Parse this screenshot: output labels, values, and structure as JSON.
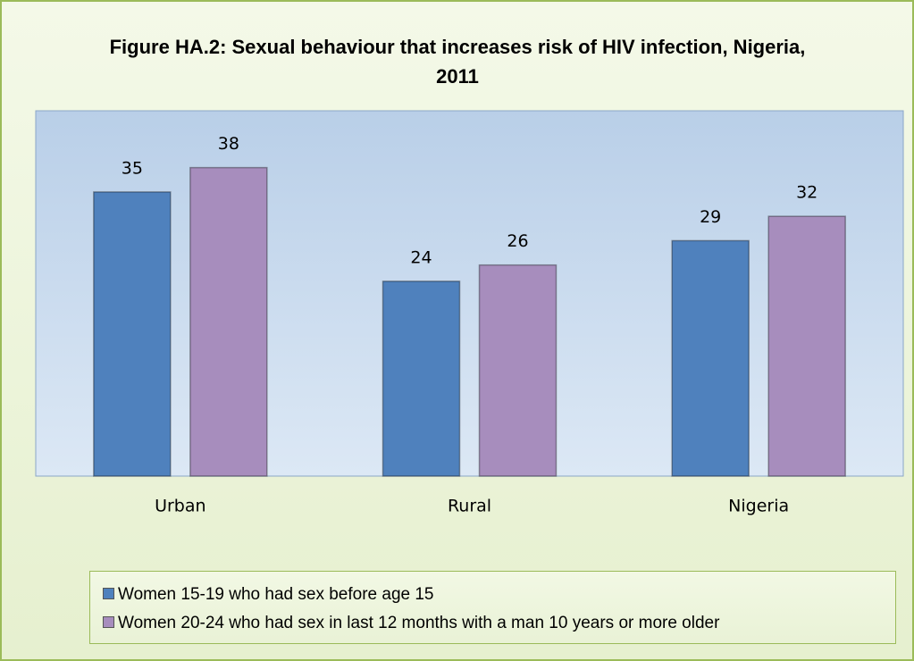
{
  "chart_data": {
    "type": "bar",
    "title": "Figure HA.2: Sexual behaviour that increases risk of HIV infection, Nigeria, 2011",
    "categories": [
      "Urban",
      "Rural",
      "Nigeria"
    ],
    "series": [
      {
        "name": "Women 15-19 who had sex before age 15",
        "color": "#4f81bd",
        "values": [
          35,
          24,
          29
        ]
      },
      {
        "name": "Women 20-24 who had sex in last 12 months with a man 10 years or more older",
        "color": "#a78dbd",
        "values": [
          38,
          26,
          32
        ]
      }
    ],
    "ylim": [
      0,
      45
    ],
    "grid": false,
    "legend": "bottom"
  }
}
